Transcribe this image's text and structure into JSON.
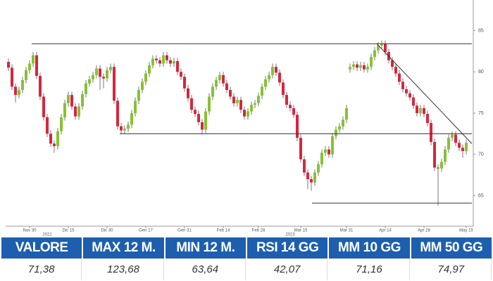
{
  "chart_data": {
    "type": "candlestick",
    "categories": [
      null,
      null,
      null,
      null,
      null,
      null,
      "Nov 30",
      null,
      null,
      null,
      null,
      null,
      null,
      null,
      null,
      null,
      null,
      "Dic 15",
      null,
      null,
      null,
      null,
      null,
      null,
      null,
      null,
      null,
      null,
      "Dic 30",
      null,
      null,
      null,
      null,
      null,
      null,
      null,
      null,
      null,
      null,
      "Gen 17",
      null,
      null,
      null,
      null,
      null,
      null,
      null,
      null,
      null,
      null,
      "Gen 31",
      null,
      null,
      null,
      null,
      null,
      null,
      null,
      null,
      null,
      null,
      "Feb 14",
      null,
      null,
      null,
      null,
      null,
      null,
      null,
      null,
      null,
      "Feb 28",
      null,
      null,
      null,
      null,
      null,
      null,
      null,
      null,
      null,
      null,
      null,
      "Mar 15",
      null,
      null,
      null,
      null,
      null,
      null,
      null,
      null,
      null,
      null,
      null,
      null,
      "Mar 31",
      null,
      null,
      null,
      null,
      null,
      null,
      null,
      null,
      null,
      null,
      "Apr 14",
      null,
      null,
      null,
      null,
      null,
      null,
      null,
      null,
      null,
      null,
      "Apr 28",
      null,
      null,
      null,
      null,
      null,
      null,
      null,
      null,
      null,
      null,
      null,
      "May 15"
    ],
    "year_labels": [
      {
        "index": 11,
        "label": "2022"
      },
      {
        "index": 80,
        "label": "2023"
      }
    ],
    "open": [
      81.2,
      80.5,
      78.2,
      77.2,
      77.8,
      79.0,
      80.2,
      81.0,
      82.0,
      79.5,
      77.0,
      74.5,
      72.5,
      71.3,
      71.0,
      72.8,
      74.5,
      76.2,
      77.2,
      75.8,
      74.6,
      75.8,
      77.3,
      78.6,
      79.1,
      79.6,
      80.4,
      79.4,
      79.2,
      80.2,
      80.6,
      76.5,
      73.4,
      72.9,
      73.1,
      73.6,
      75.0,
      76.5,
      77.8,
      78.8,
      79.8,
      80.8,
      81.6,
      81.4,
      81.0,
      82.0,
      81.4,
      81.0,
      81.3,
      80.0,
      79.4,
      78.0,
      76.8,
      75.4,
      74.9,
      73.9,
      73.0,
      75.2,
      77.0,
      78.2,
      79.0,
      79.6,
      78.6,
      77.8,
      77.0,
      76.2,
      76.6,
      75.4,
      74.6,
      75.2,
      76.0,
      76.2,
      77.1,
      78.2,
      79.1,
      79.6,
      80.6,
      79.9,
      78.7,
      77.2,
      76.0,
      75.6,
      74.8,
      72.0,
      69.4,
      67.8,
      67.0,
      66.6,
      67.8,
      68.8,
      70.2,
      70.6,
      70.0,
      72.2,
      73.0,
      73.4,
      74.2,
      80.3,
      80.6,
      80.9,
      80.5,
      80.8,
      80.3,
      80.6,
      81.8,
      82.6,
      83.2,
      83.4,
      82.4,
      81.4,
      80.6,
      79.8,
      78.8,
      77.9,
      77.4,
      76.9,
      75.9,
      75.0,
      75.6,
      74.9,
      73.8,
      71.5,
      68.4,
      68.3,
      69.1,
      70.6,
      72.0,
      72.4,
      71.4,
      70.8,
      70.4
    ],
    "high": [
      81.6,
      80.9,
      78.6,
      78.2,
      79.4,
      80.6,
      81.4,
      82.4,
      82.4,
      79.9,
      77.4,
      74.9,
      72.9,
      71.7,
      73.2,
      74.9,
      76.6,
      77.6,
      77.6,
      76.2,
      76.2,
      77.7,
      79.0,
      79.5,
      80.0,
      80.8,
      80.8,
      79.8,
      80.6,
      81.0,
      81.0,
      76.9,
      73.8,
      73.5,
      74.0,
      75.4,
      76.9,
      78.2,
      79.2,
      80.2,
      81.2,
      82.0,
      82.0,
      81.8,
      82.4,
      82.4,
      81.8,
      81.7,
      81.7,
      80.4,
      79.8,
      78.4,
      77.2,
      75.8,
      75.3,
      74.3,
      75.6,
      77.4,
      78.6,
      79.4,
      80.0,
      80.0,
      79.0,
      78.2,
      77.4,
      77.0,
      77.0,
      75.8,
      75.6,
      76.4,
      76.6,
      77.5,
      78.6,
      79.5,
      80.0,
      81.0,
      81.0,
      80.3,
      79.1,
      77.6,
      76.4,
      76.0,
      75.2,
      72.4,
      69.8,
      68.2,
      67.4,
      68.2,
      69.2,
      70.6,
      71.0,
      71.0,
      72.6,
      73.4,
      73.8,
      74.6,
      76.0,
      81.0,
      81.3,
      81.3,
      81.2,
      81.2,
      81.0,
      82.2,
      83.0,
      83.6,
      83.8,
      83.8,
      82.8,
      81.8,
      81.0,
      80.2,
      79.2,
      78.3,
      77.8,
      77.3,
      76.3,
      76.0,
      76.0,
      75.3,
      74.2,
      71.9,
      68.8,
      69.5,
      71.0,
      72.4,
      72.8,
      72.8,
      71.8,
      71.2,
      71.8
    ],
    "low": [
      80.1,
      77.8,
      76.3,
      76.8,
      77.4,
      78.6,
      79.8,
      80.6,
      79.1,
      76.6,
      74.1,
      72.1,
      70.9,
      70.2,
      70.6,
      72.4,
      74.1,
      75.8,
      75.4,
      74.2,
      74.2,
      75.4,
      76.9,
      78.2,
      78.7,
      79.2,
      77.8,
      78.0,
      78.8,
      79.8,
      76.1,
      73.0,
      72.5,
      72.5,
      72.7,
      73.2,
      74.6,
      76.1,
      77.4,
      78.4,
      79.4,
      80.4,
      81.0,
      80.6,
      80.6,
      81.0,
      80.6,
      80.6,
      79.6,
      79.0,
      77.6,
      76.4,
      75.0,
      74.5,
      73.5,
      72.4,
      72.6,
      74.8,
      76.6,
      77.8,
      78.6,
      78.2,
      77.4,
      76.6,
      75.8,
      75.8,
      75.0,
      74.2,
      74.2,
      74.8,
      75.6,
      75.8,
      76.7,
      77.8,
      78.7,
      79.2,
      79.5,
      78.3,
      76.8,
      75.6,
      75.2,
      74.4,
      71.6,
      69.0,
      67.4,
      65.8,
      65.6,
      66.2,
      67.4,
      68.4,
      69.8,
      69.6,
      69.6,
      71.8,
      72.6,
      73.0,
      73.8,
      79.9,
      80.2,
      80.1,
      80.1,
      79.9,
      79.9,
      80.2,
      81.4,
      82.2,
      82.8,
      82.0,
      81.0,
      80.2,
      79.4,
      78.4,
      77.5,
      77.0,
      76.5,
      75.5,
      74.6,
      74.6,
      74.5,
      73.4,
      71.1,
      68.0,
      63.8,
      67.9,
      68.7,
      70.2,
      71.6,
      71.0,
      70.4,
      69.6,
      70.0
    ],
    "close": [
      80.5,
      78.2,
      77.2,
      77.8,
      79.0,
      80.2,
      81.0,
      82.0,
      79.5,
      77.0,
      74.5,
      72.5,
      71.3,
      71.0,
      72.8,
      74.5,
      76.2,
      77.2,
      75.8,
      74.6,
      75.8,
      77.3,
      78.6,
      79.1,
      79.6,
      80.4,
      79.4,
      79.2,
      80.2,
      80.6,
      76.5,
      73.4,
      72.9,
      73.1,
      73.6,
      75.0,
      76.5,
      77.8,
      78.8,
      79.8,
      80.8,
      81.6,
      81.4,
      81.0,
      82.0,
      81.4,
      81.0,
      81.3,
      80.0,
      79.4,
      78.0,
      76.8,
      75.4,
      74.9,
      73.9,
      73.0,
      75.2,
      77.0,
      78.2,
      79.0,
      79.6,
      78.6,
      77.8,
      77.0,
      76.2,
      76.6,
      75.4,
      74.6,
      75.2,
      76.0,
      76.2,
      77.1,
      78.2,
      79.1,
      79.6,
      80.6,
      79.9,
      78.7,
      77.2,
      76.0,
      75.6,
      74.8,
      72.0,
      69.4,
      67.8,
      67.0,
      66.6,
      67.8,
      68.8,
      70.2,
      70.6,
      70.0,
      72.2,
      73.0,
      73.4,
      74.2,
      75.6,
      80.6,
      80.9,
      80.5,
      80.8,
      80.3,
      80.6,
      81.8,
      82.6,
      83.2,
      83.4,
      82.4,
      81.4,
      80.6,
      79.8,
      78.8,
      77.9,
      77.4,
      76.9,
      75.9,
      75.0,
      75.6,
      74.9,
      73.8,
      71.5,
      68.4,
      68.3,
      69.1,
      70.6,
      72.0,
      72.4,
      71.4,
      70.8,
      70.4,
      71.4
    ],
    "up_color": "#86c232",
    "down_color": "#d7263d",
    "ylim": [
      61.3,
      88.7
    ],
    "yticks": [
      65,
      70,
      75,
      80,
      85
    ],
    "lines": [
      {
        "x": [
          6.6,
          131.6
        ],
        "y": [
          83.4,
          83.4
        ]
      },
      {
        "x": [
          31.6,
          131.6
        ],
        "y": [
          72.5,
          72.5
        ]
      },
      {
        "x": [
          86.2,
          131.6
        ],
        "y": [
          64.1,
          64.1
        ]
      },
      {
        "x": [
          104.6,
          131.6
        ],
        "y": [
          83.4,
          71.3
        ]
      }
    ],
    "line_color": "#333333"
  },
  "table": {
    "header": [
      "VALORE",
      "MAX 12 M.",
      "MIN 12 M.",
      "RSI 14 GG",
      "MM 10 GG",
      "MM 50 GG"
    ],
    "rows": [
      [
        "71,38",
        "123,68",
        "63,64",
        "42,07",
        "71,16",
        "74,97"
      ]
    ]
  }
}
